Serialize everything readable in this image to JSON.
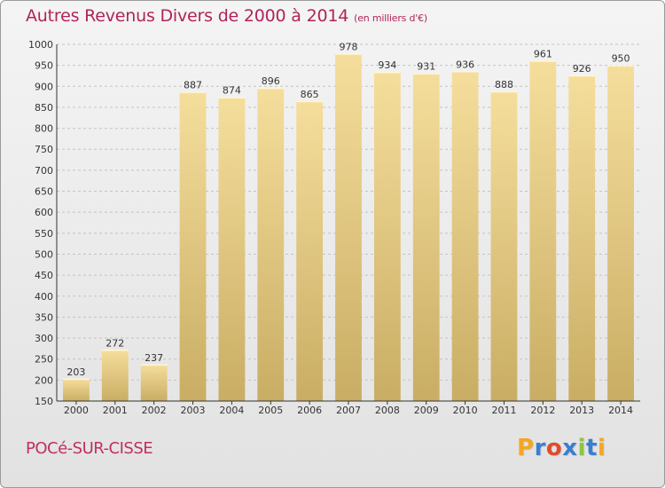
{
  "title": "Autres Revenus Divers de 2000 à 2014",
  "unit_note": "(en milliers d'€)",
  "commune": "POCé-SUR-CISSE",
  "logo": {
    "letters": [
      "P",
      "r",
      "o",
      "x",
      "i",
      "t",
      "i"
    ],
    "colors": [
      "#f5a623",
      "#3a7fd0",
      "#e04b2a",
      "#3a7fd0",
      "#8cc63f",
      "#3a7fd0",
      "#f5a623"
    ]
  },
  "chart_data": {
    "type": "bar",
    "title": "Autres Revenus Divers de 2000 à 2014",
    "xlabel": "",
    "ylabel": "",
    "ylim": [
      150,
      1000
    ],
    "yticks": [
      150,
      200,
      250,
      300,
      350,
      400,
      450,
      500,
      550,
      600,
      650,
      700,
      750,
      800,
      850,
      900,
      950,
      1000
    ],
    "grid": "horizontal dashed",
    "categories": [
      "2000",
      "2001",
      "2002",
      "2003",
      "2004",
      "2005",
      "2006",
      "2007",
      "2008",
      "2009",
      "2010",
      "2011",
      "2012",
      "2013",
      "2014"
    ],
    "values": [
      203,
      272,
      237,
      887,
      874,
      896,
      865,
      978,
      934,
      931,
      936,
      888,
      961,
      926,
      950
    ],
    "bar_color": "#e8cf86"
  }
}
